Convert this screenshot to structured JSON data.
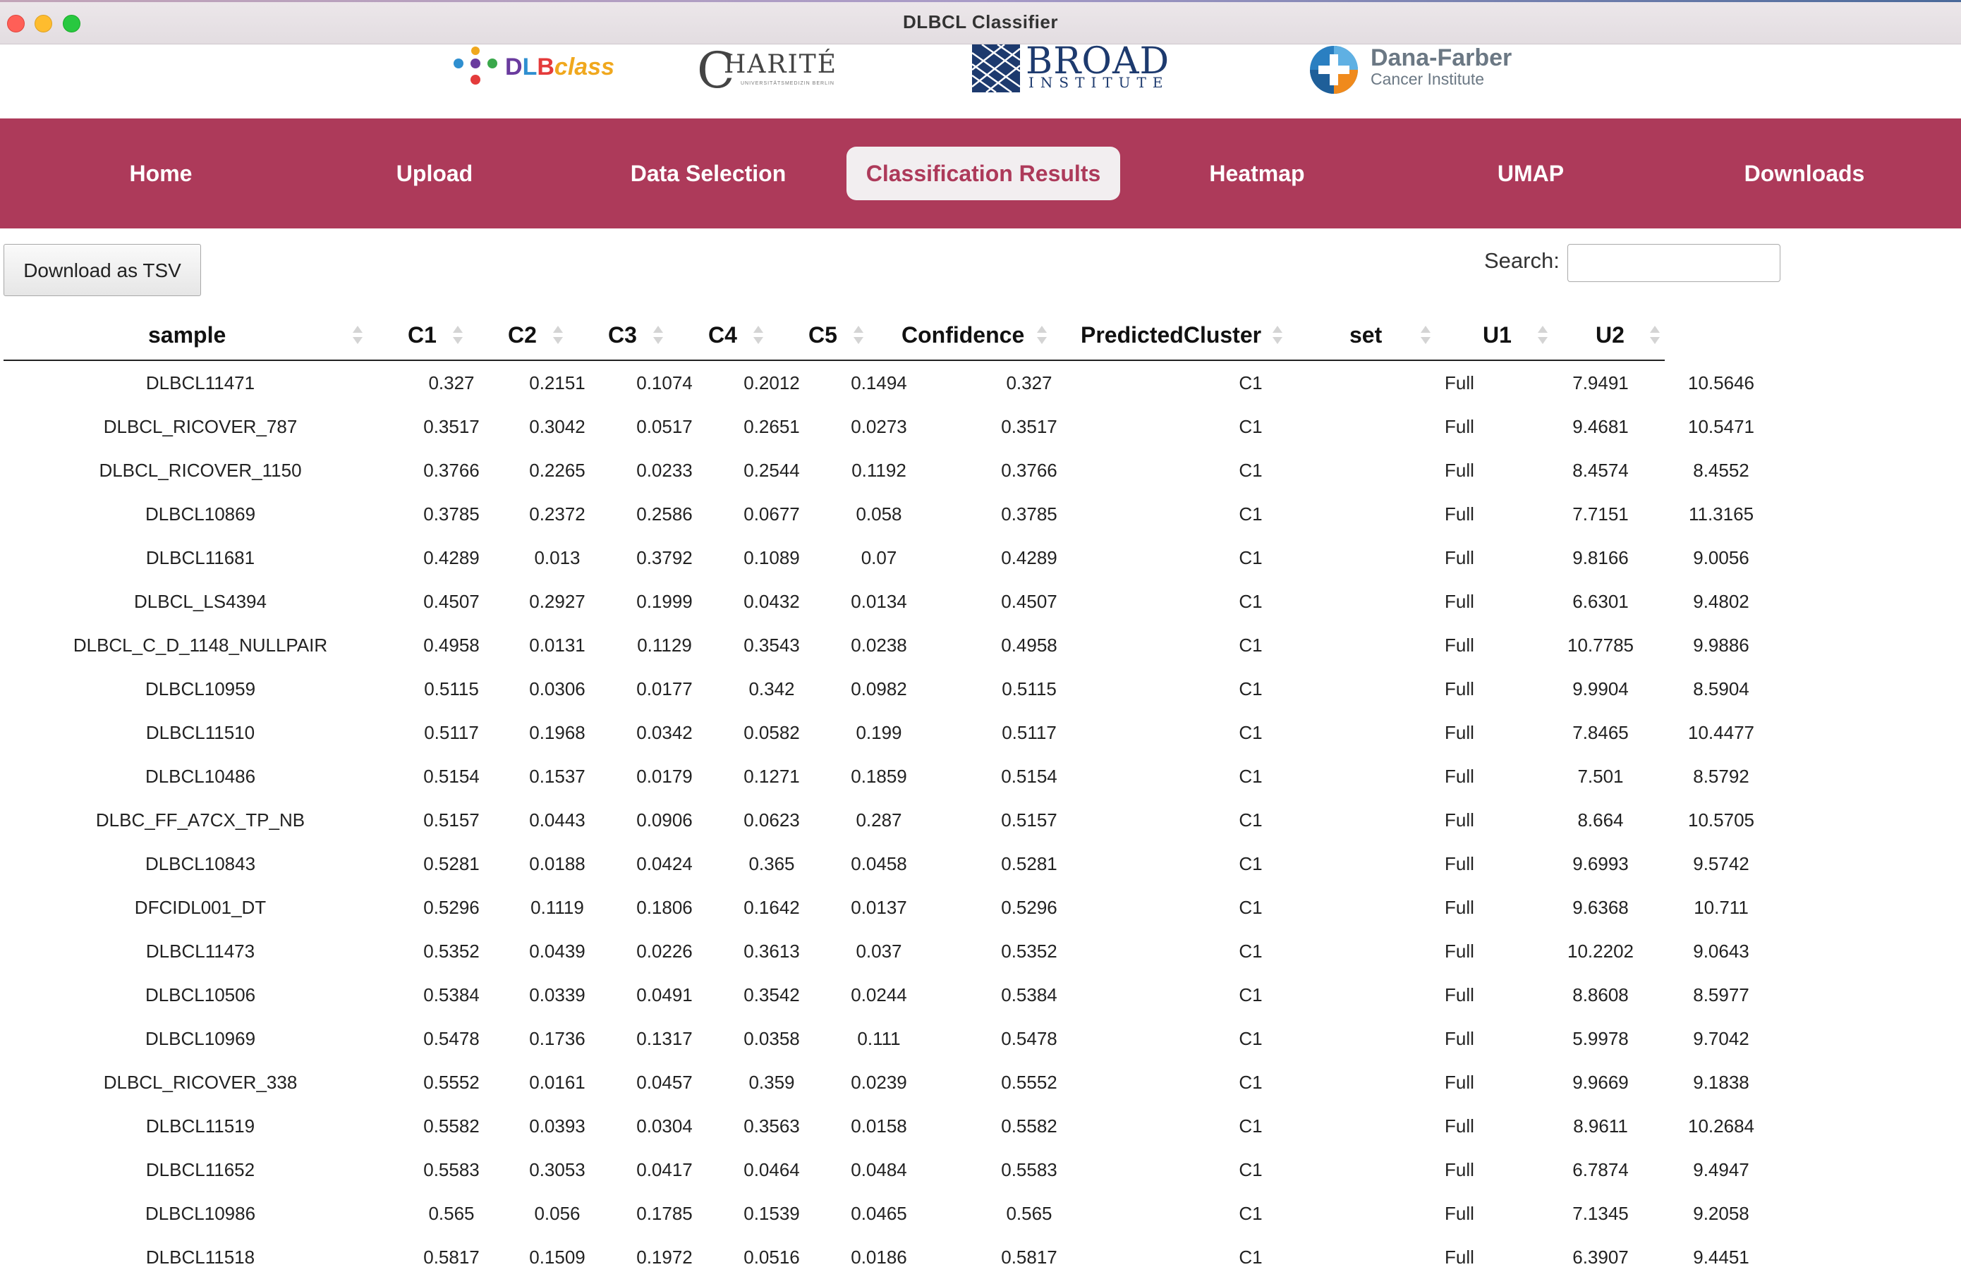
{
  "window": {
    "title": "DLBCL Classifier"
  },
  "logos": {
    "dlbclass": {
      "parts": [
        "D",
        "L",
        "B",
        "class"
      ]
    },
    "charite": {
      "mark": "C",
      "text": "HARITÉ",
      "sub": "UNIVERSITÄTSMEDIZIN BERLIN"
    },
    "broad": {
      "line1": "BROAD",
      "line2": "INSTITUTE"
    },
    "dana_farber": {
      "line1": "Dana-Farber",
      "line2": "Cancer Institute"
    }
  },
  "nav": {
    "items": [
      "Home",
      "Upload",
      "Data Selection",
      "Classification Results",
      "Heatmap",
      "UMAP",
      "Downloads"
    ],
    "active": "Classification Results",
    "active_bg": "#f2eef0",
    "bar_color": "#ad3a5a"
  },
  "toolbar": {
    "download_label": "Download as TSV",
    "search_label": "Search:",
    "search_value": ""
  },
  "table": {
    "columns": [
      "sample",
      "C1",
      "C2",
      "C3",
      "C4",
      "C5",
      "Confidence",
      "PredictedCluster",
      "set",
      "U1",
      "U2"
    ],
    "rows": [
      [
        "DLBCL11471",
        "0.327",
        "0.2151",
        "0.1074",
        "0.2012",
        "0.1494",
        "0.327",
        "C1",
        "Full",
        "7.9491",
        "10.5646"
      ],
      [
        "DLBCL_RICOVER_787",
        "0.3517",
        "0.3042",
        "0.0517",
        "0.2651",
        "0.0273",
        "0.3517",
        "C1",
        "Full",
        "9.4681",
        "10.5471"
      ],
      [
        "DLBCL_RICOVER_1150",
        "0.3766",
        "0.2265",
        "0.0233",
        "0.2544",
        "0.1192",
        "0.3766",
        "C1",
        "Full",
        "8.4574",
        "8.4552"
      ],
      [
        "DLBCL10869",
        "0.3785",
        "0.2372",
        "0.2586",
        "0.0677",
        "0.058",
        "0.3785",
        "C1",
        "Full",
        "7.7151",
        "11.3165"
      ],
      [
        "DLBCL11681",
        "0.4289",
        "0.013",
        "0.3792",
        "0.1089",
        "0.07",
        "0.4289",
        "C1",
        "Full",
        "9.8166",
        "9.0056"
      ],
      [
        "DLBCL_LS4394",
        "0.4507",
        "0.2927",
        "0.1999",
        "0.0432",
        "0.0134",
        "0.4507",
        "C1",
        "Full",
        "6.6301",
        "9.4802"
      ],
      [
        "DLBCL_C_D_1148_NULLPAIR",
        "0.4958",
        "0.0131",
        "0.1129",
        "0.3543",
        "0.0238",
        "0.4958",
        "C1",
        "Full",
        "10.7785",
        "9.9886"
      ],
      [
        "DLBCL10959",
        "0.5115",
        "0.0306",
        "0.0177",
        "0.342",
        "0.0982",
        "0.5115",
        "C1",
        "Full",
        "9.9904",
        "8.5904"
      ],
      [
        "DLBCL11510",
        "0.5117",
        "0.1968",
        "0.0342",
        "0.0582",
        "0.199",
        "0.5117",
        "C1",
        "Full",
        "7.8465",
        "10.4477"
      ],
      [
        "DLBCL10486",
        "0.5154",
        "0.1537",
        "0.0179",
        "0.1271",
        "0.1859",
        "0.5154",
        "C1",
        "Full",
        "7.501",
        "8.5792"
      ],
      [
        "DLBC_FF_A7CX_TP_NB",
        "0.5157",
        "0.0443",
        "0.0906",
        "0.0623",
        "0.287",
        "0.5157",
        "C1",
        "Full",
        "8.664",
        "10.5705"
      ],
      [
        "DLBCL10843",
        "0.5281",
        "0.0188",
        "0.0424",
        "0.365",
        "0.0458",
        "0.5281",
        "C1",
        "Full",
        "9.6993",
        "9.5742"
      ],
      [
        "DFCIDL001_DT",
        "0.5296",
        "0.1119",
        "0.1806",
        "0.1642",
        "0.0137",
        "0.5296",
        "C1",
        "Full",
        "9.6368",
        "10.711"
      ],
      [
        "DLBCL11473",
        "0.5352",
        "0.0439",
        "0.0226",
        "0.3613",
        "0.037",
        "0.5352",
        "C1",
        "Full",
        "10.2202",
        "9.0643"
      ],
      [
        "DLBCL10506",
        "0.5384",
        "0.0339",
        "0.0491",
        "0.3542",
        "0.0244",
        "0.5384",
        "C1",
        "Full",
        "8.8608",
        "8.5977"
      ],
      [
        "DLBCL10969",
        "0.5478",
        "0.1736",
        "0.1317",
        "0.0358",
        "0.111",
        "0.5478",
        "C1",
        "Full",
        "5.9978",
        "9.7042"
      ],
      [
        "DLBCL_RICOVER_338",
        "0.5552",
        "0.0161",
        "0.0457",
        "0.359",
        "0.0239",
        "0.5552",
        "C1",
        "Full",
        "9.9669",
        "9.1838"
      ],
      [
        "DLBCL11519",
        "0.5582",
        "0.0393",
        "0.0304",
        "0.3563",
        "0.0158",
        "0.5582",
        "C1",
        "Full",
        "8.9611",
        "10.2684"
      ],
      [
        "DLBCL11652",
        "0.5583",
        "0.3053",
        "0.0417",
        "0.0464",
        "0.0484",
        "0.5583",
        "C1",
        "Full",
        "6.7874",
        "9.4947"
      ],
      [
        "DLBCL10986",
        "0.565",
        "0.056",
        "0.1785",
        "0.1539",
        "0.0465",
        "0.565",
        "C1",
        "Full",
        "7.1345",
        "9.2058"
      ],
      [
        "DLBCL11518",
        "0.5817",
        "0.1509",
        "0.1972",
        "0.0516",
        "0.0186",
        "0.5817",
        "C1",
        "Full",
        "6.3907",
        "9.4451"
      ]
    ]
  }
}
